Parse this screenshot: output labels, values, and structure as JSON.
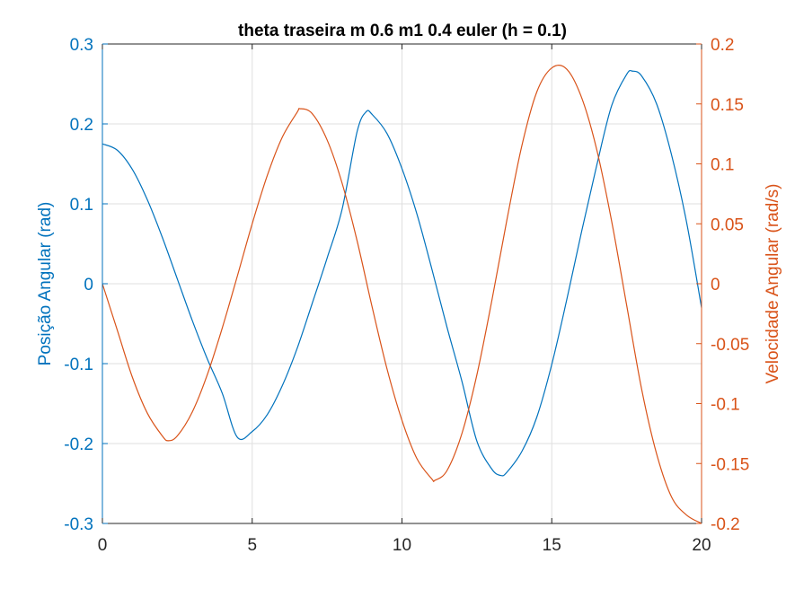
{
  "colors": {
    "left": "#0072BD",
    "right": "#D95319",
    "grid": "#DFDFDF",
    "axis": "#262626"
  },
  "chart_data": {
    "type": "line",
    "title": "theta traseira m 0.6 m1 0.4 euler (h = 0.1)",
    "xlabel": "",
    "ylabel_left": "Posição Angular (rad)",
    "ylabel_right": "Velocidade Angular (rad/s)",
    "xlim": [
      0,
      20
    ],
    "ylim_left": [
      -0.3,
      0.3
    ],
    "ylim_right": [
      -0.2,
      0.2
    ],
    "grid": true,
    "x_ticks": [
      "0",
      "5",
      "10",
      "15",
      "20"
    ],
    "y_left_ticks": [
      "0.3",
      "0.2",
      "0.1",
      "0",
      "-0.1",
      "-0.2",
      "-0.3"
    ],
    "y_right_ticks": [
      "0.2",
      "0.15",
      "0.1",
      "0.05",
      "0",
      "-0.05",
      "-0.1",
      "-0.15",
      "-0.2"
    ],
    "series": [
      {
        "axis": "left",
        "color": "#0072BD",
        "x": [
          0,
          0.5,
          1,
          1.5,
          2,
          2.5,
          3,
          3.5,
          4,
          4.5,
          5,
          5.5,
          6,
          6.5,
          7,
          7.5,
          8,
          8.5,
          8.8,
          9,
          9.5,
          10,
          10.5,
          11,
          11.5,
          12,
          12.5,
          13,
          13.3,
          13.5,
          14,
          14.5,
          15,
          15.5,
          16,
          16.5,
          17,
          17.5,
          17.7,
          18,
          18.5,
          19,
          19.5,
          20
        ],
        "y": [
          0.175,
          0.167,
          0.143,
          0.105,
          0.058,
          0.006,
          -0.046,
          -0.094,
          -0.137,
          -0.192,
          -0.185,
          -0.164,
          -0.128,
          -0.081,
          -0.025,
          0.032,
          0.093,
          0.19,
          0.215,
          0.212,
          0.188,
          0.144,
          0.087,
          0.018,
          -0.054,
          -0.122,
          -0.197,
          -0.232,
          -0.24,
          -0.236,
          -0.21,
          -0.167,
          -0.101,
          -0.02,
          0.066,
          0.148,
          0.223,
          0.262,
          0.266,
          0.26,
          0.225,
          0.161,
          0.077,
          -0.03
        ]
      },
      {
        "axis": "right",
        "color": "#D95319",
        "x": [
          0,
          0.5,
          1,
          1.5,
          2,
          2.2,
          2.5,
          3,
          3.5,
          4,
          4.5,
          5,
          5.5,
          6,
          6.5,
          6.6,
          7,
          7.5,
          8,
          8.5,
          9,
          9.5,
          10,
          10.5,
          11,
          11.1,
          11.5,
          12,
          12.5,
          13,
          13.5,
          14,
          14.5,
          15,
          15.5,
          16,
          16.5,
          17,
          17.5,
          18,
          18.5,
          19,
          19.5,
          20
        ],
        "y": [
          0,
          -0.039,
          -0.078,
          -0.108,
          -0.127,
          -0.131,
          -0.127,
          -0.107,
          -0.076,
          -0.037,
          0.006,
          0.05,
          0.09,
          0.122,
          0.143,
          0.146,
          0.142,
          0.12,
          0.084,
          0.036,
          -0.019,
          -0.071,
          -0.114,
          -0.146,
          -0.163,
          -0.164,
          -0.156,
          -0.125,
          -0.076,
          -0.014,
          0.053,
          0.115,
          0.16,
          0.18,
          0.179,
          0.155,
          0.112,
          0.052,
          -0.018,
          -0.088,
          -0.142,
          -0.178,
          -0.193,
          -0.2
        ]
      }
    ]
  }
}
